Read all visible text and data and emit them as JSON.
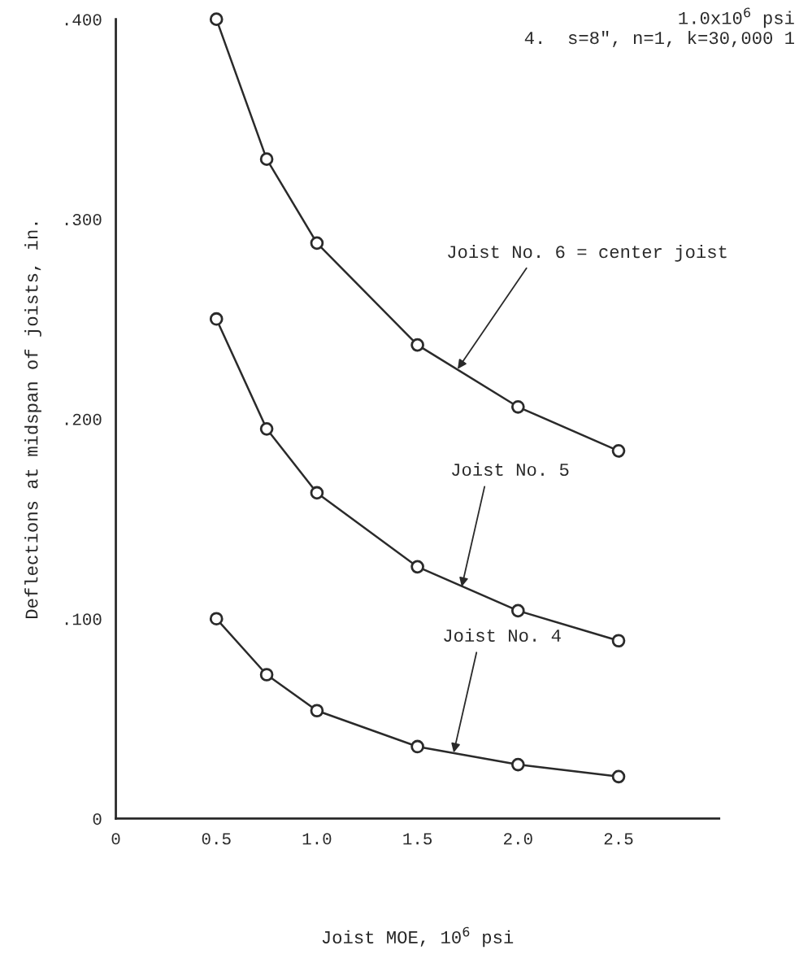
{
  "chart_data": {
    "type": "line",
    "xlabel": "Joist MOE, 10$^{6}$ psi",
    "ylabel": "Deflections at midspan of joists, in.",
    "x": [
      0.5,
      0.75,
      1.0,
      1.5,
      2.0,
      2.5
    ],
    "series": [
      {
        "color": "#2a2a2a",
        "values": [
          0.4,
          0.33,
          0.288,
          0.237,
          0.206,
          0.184
        ]
      },
      {
        "color": "#2a2a2a",
        "values": [
          0.25,
          0.195,
          0.163,
          0.126,
          0.104,
          0.089
        ]
      },
      {
        "color": "#2a2a2a",
        "values": [
          0.1,
          0.072,
          0.054,
          0.036,
          0.027,
          0.021
        ]
      }
    ],
    "marker": "circle",
    "line_style": "solid",
    "grid": false,
    "legend": false,
    "xlim": [
      0,
      3.0
    ],
    "ylim": [
      0,
      0.4
    ],
    "xticks": [
      0,
      {
        "value": 0.5,
        "label": "0.5"
      },
      {
        "value": 1.0,
        "label": "1.0"
      },
      {
        "value": 1.5,
        "label": "1.5"
      },
      {
        "value": 2.0,
        "label": "2.0"
      },
      {
        "value": 2.5,
        "label": "2.5"
      }
    ],
    "yticks": [
      0,
      {
        "value": 0.1,
        "label": ".100"
      },
      {
        "value": 0.2,
        "label": ".200"
      },
      {
        "value": 0.3,
        "label": ".300"
      },
      {
        "value": 0.4,
        "label": ".400"
      }
    ],
    "annotations": [
      {
        "text": "Joist No. 6 = center joist",
        "x": 1.7,
        "y": 0.225
      },
      {
        "text": "Joist No. 5",
        "x": 1.72,
        "y": 0.116
      },
      {
        "text": "Joist No. 4",
        "x": 1.68,
        "y": 0.033
      },
      "1.0x10$^{6}$ psi",
      "4.  s=8\", n=1, k=30,000 1"
    ]
  }
}
